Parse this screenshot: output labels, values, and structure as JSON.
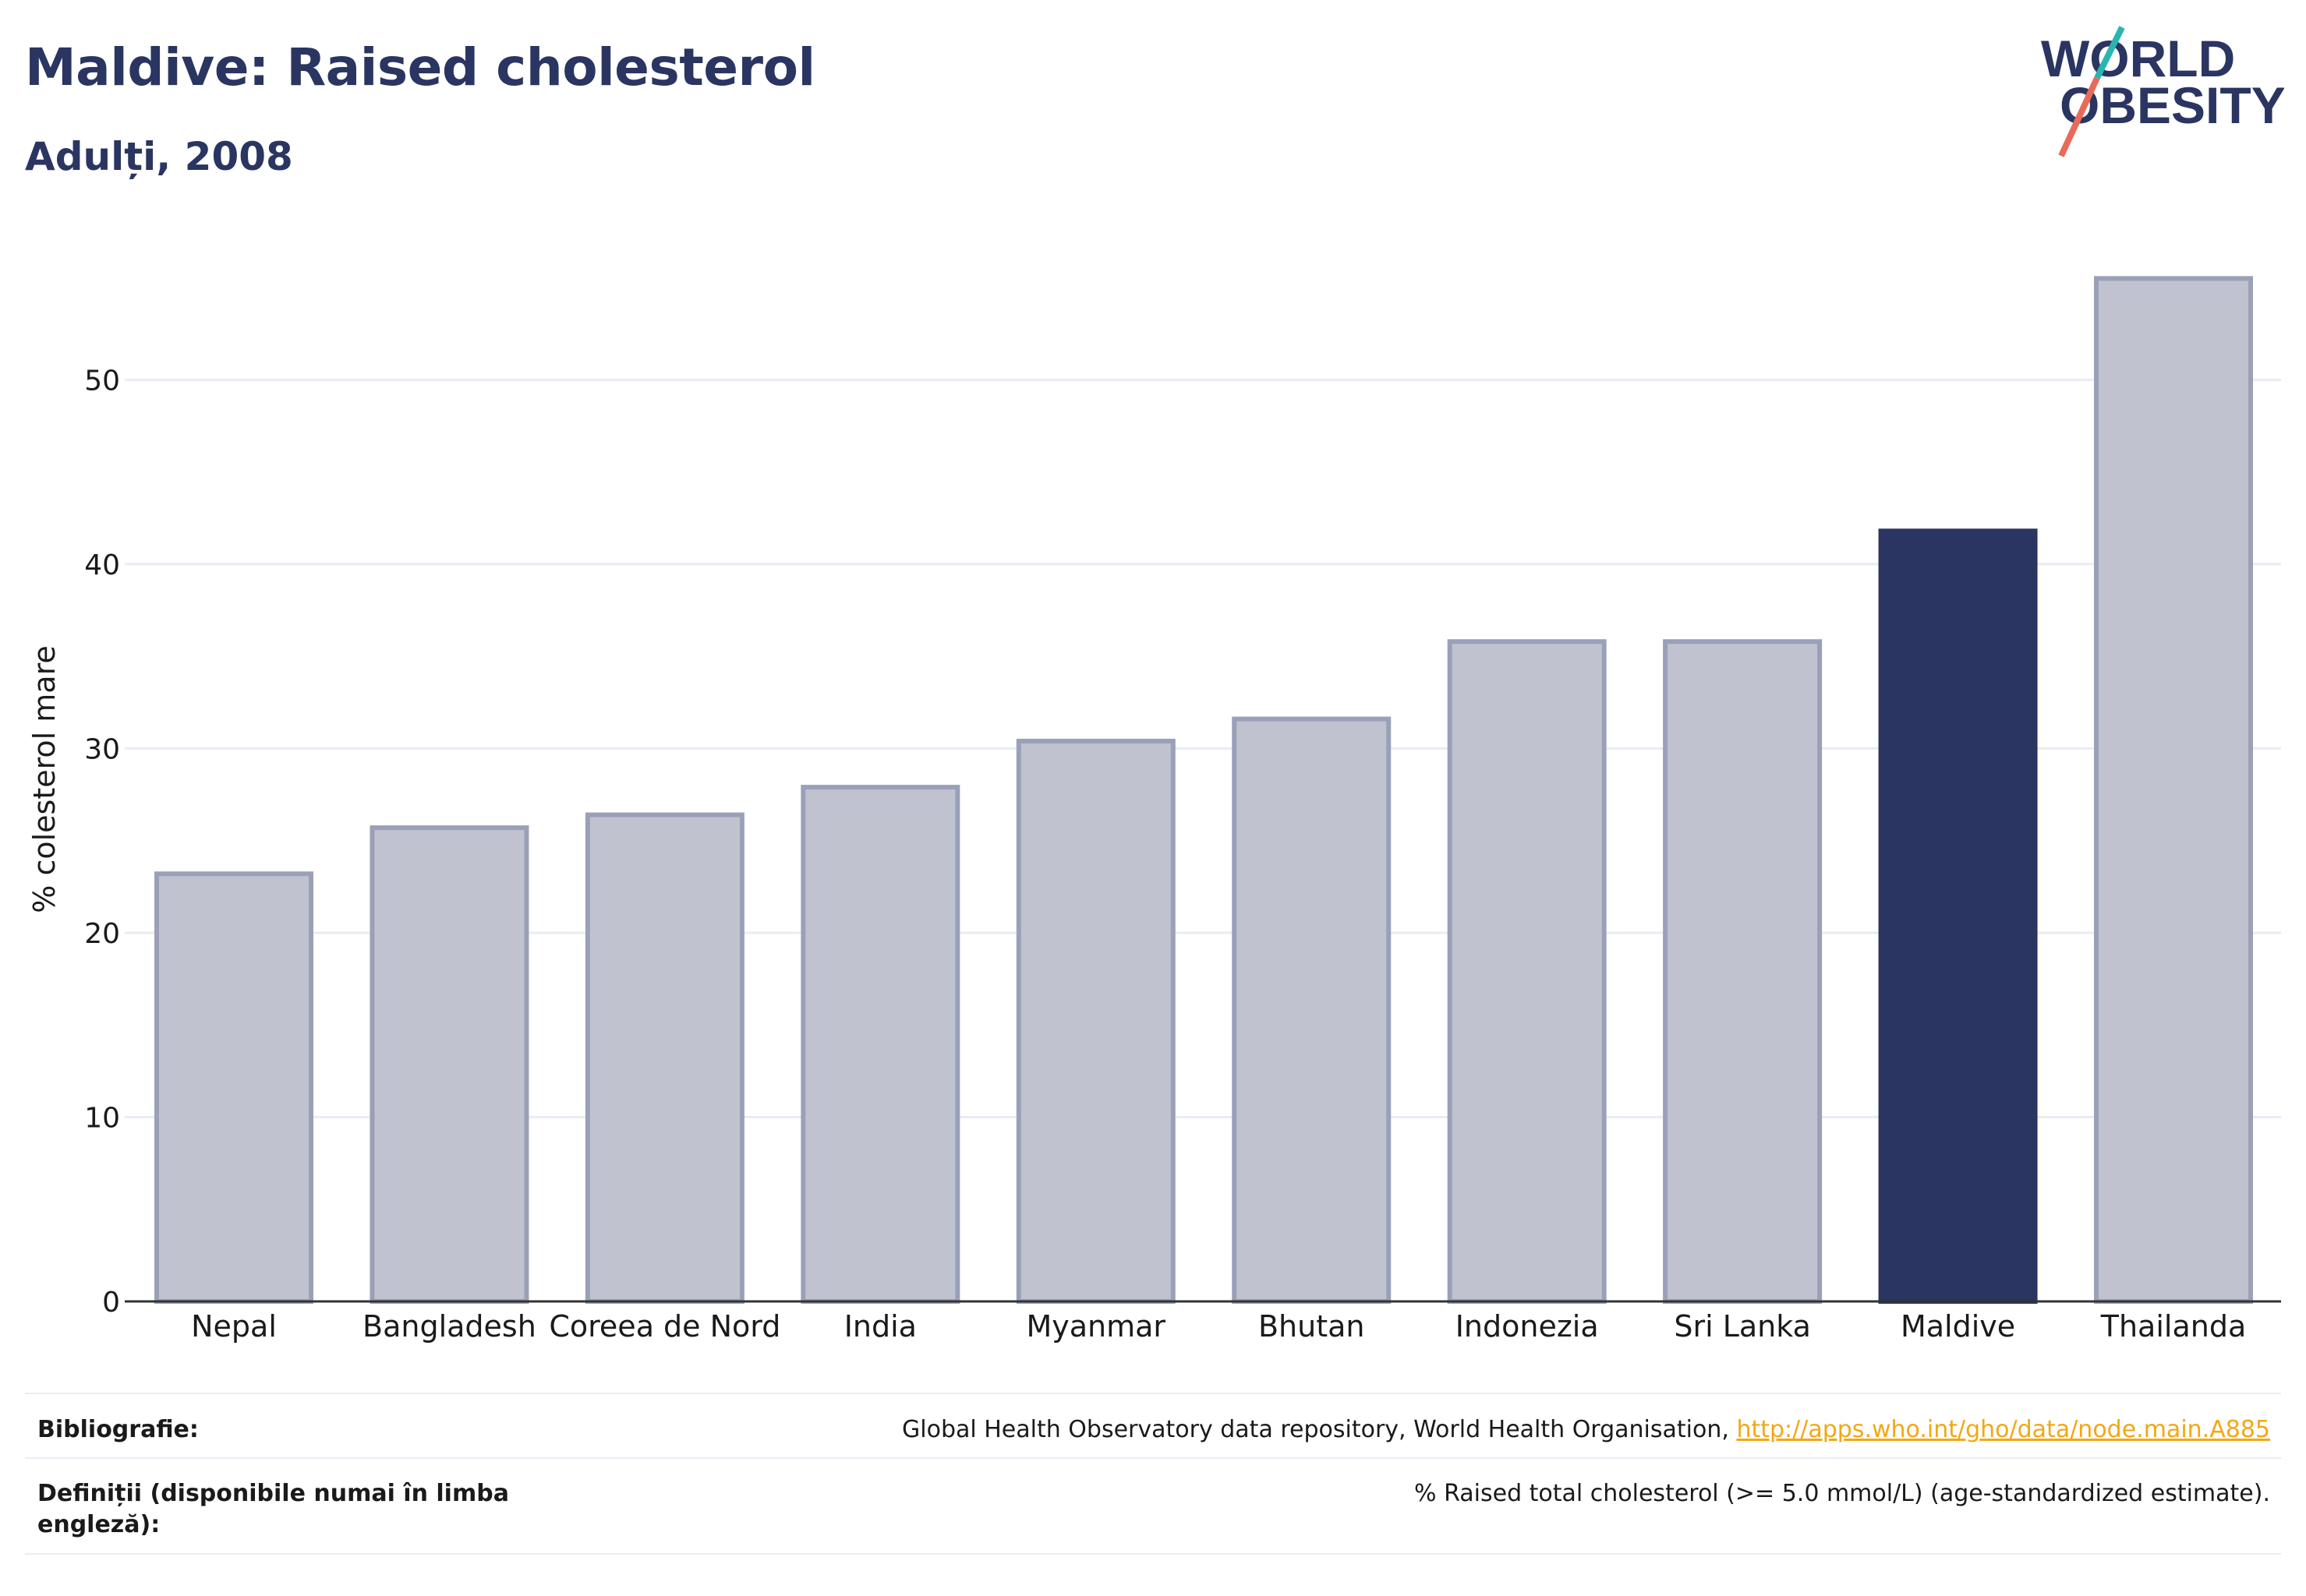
{
  "header": {
    "title": "Maldive: Raised cholesterol",
    "subtitle": "Adulți, 2008"
  },
  "logo": {
    "line1": "WORLD",
    "line2": "OBESITY",
    "colors": {
      "text": "#2a3561",
      "slash_teal": "#2bb5b0",
      "slash_coral": "#e86a5a"
    }
  },
  "chart_data": {
    "type": "bar",
    "categories": [
      "Nepal",
      "Bangladesh",
      "Coreea de Nord",
      "India",
      "Myanmar",
      "Bhutan",
      "Indonezia",
      "Sri Lanka",
      "Maldive",
      "Thailanda"
    ],
    "values": [
      23.2,
      25.7,
      26.4,
      27.9,
      30.4,
      31.6,
      35.8,
      35.8,
      41.8,
      55.5
    ],
    "highlight": "Maldive",
    "ylabel": "% colesterol mare",
    "xlabel": "",
    "ylim": [
      0,
      57.5
    ],
    "yticks": [
      0,
      10,
      20,
      30,
      40,
      50
    ],
    "grid": true,
    "colors": {
      "bar": "#c0c3cf",
      "bar_stroke": "#9aa0b8",
      "highlight": "#2a3561",
      "grid": "#e9ecf4",
      "axis": "#333333"
    }
  },
  "footer": {
    "source_label": "Bibliografie:",
    "source_text": "Global Health Observatory data repository, World Health Organisation, ",
    "source_link": "http://apps.who.int/gho/data/node.main.A885",
    "definition_label": "Definiții (disponibile numai în limba engleză):",
    "definition_text": "% Raised total cholesterol (>= 5.0 mmol/L) (age-standardized estimate)."
  }
}
